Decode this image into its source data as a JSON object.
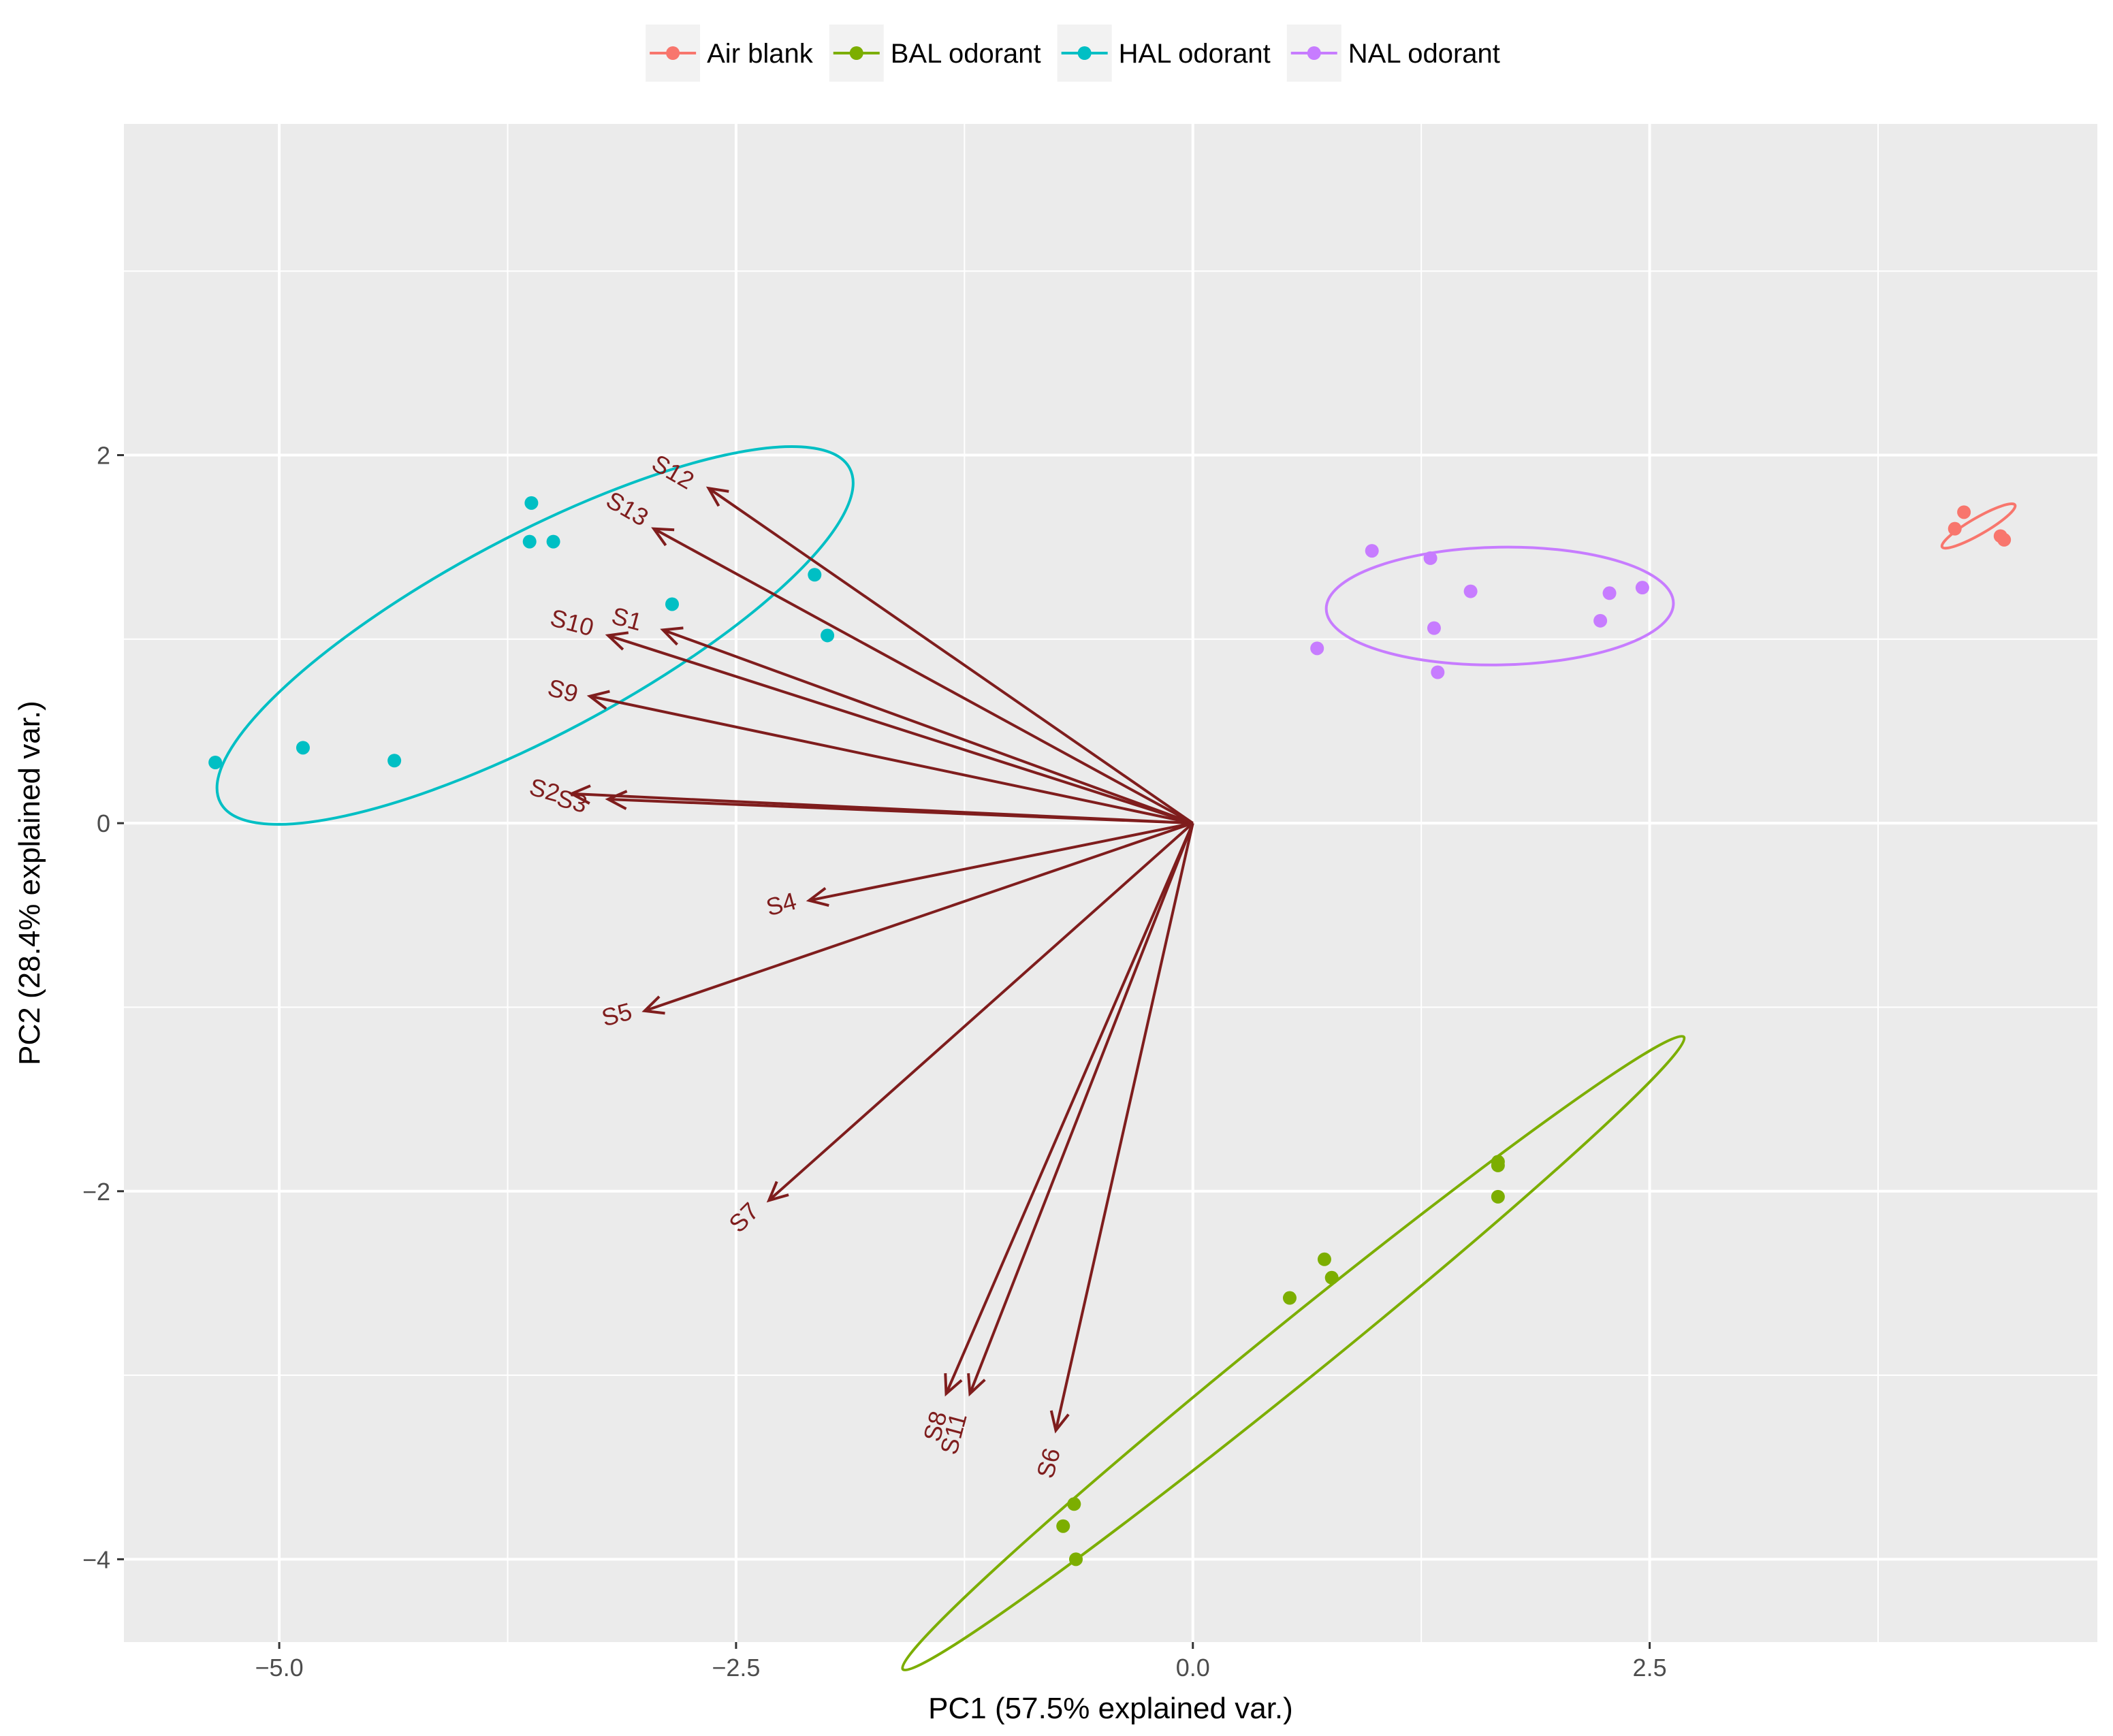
{
  "chart_data": {
    "type": "scatter",
    "title": "",
    "xlabel": "PC1 (57.5% explained var.)",
    "ylabel": "PC2 (28.4% explained var.)",
    "xlim": [
      -5.85,
      4.95
    ],
    "ylim": [
      -4.45,
      3.8
    ],
    "xticks": [
      -5.0,
      -2.5,
      0.0,
      2.5
    ],
    "xtick_labels": [
      "−5.0",
      "−2.5",
      "0.0",
      "2.5"
    ],
    "yticks": [
      -4,
      -2,
      0,
      2
    ],
    "ytick_labels": [
      "−4",
      "−2",
      "0",
      "2"
    ],
    "x_minor_gridlines": [
      -3.75,
      -1.25,
      1.25,
      3.75
    ],
    "y_minor_gridlines": [
      -3,
      -1,
      1,
      3
    ],
    "grid": true,
    "legend_position": "top",
    "legend": [
      "Air blank",
      "BAL odorant",
      "HAL odorant",
      "NAL odorant"
    ],
    "series": [
      {
        "name": "Air blank",
        "color": "#F8766D",
        "points": [
          [
            4.22,
            1.69
          ],
          [
            4.17,
            1.6
          ],
          [
            4.42,
            1.56
          ],
          [
            4.44,
            1.54
          ]
        ],
        "ellipse": {
          "center": [
            4.3,
            1.615
          ],
          "rx": 0.23,
          "ry": 0.045,
          "angle_deg": -30
        }
      },
      {
        "name": "BAL odorant",
        "color": "#7CAE00",
        "points": [
          [
            -0.65,
            -3.7
          ],
          [
            -0.71,
            -3.82
          ],
          [
            -0.64,
            -4.0
          ],
          [
            0.53,
            -2.58
          ],
          [
            0.72,
            -2.37
          ],
          [
            0.76,
            -2.47
          ],
          [
            1.67,
            -1.84
          ],
          [
            1.67,
            -1.86
          ],
          [
            1.67,
            -2.03
          ]
        ],
        "ellipse": {
          "center": [
            0.55,
            -2.88
          ],
          "rx": 2.75,
          "ry": 0.16,
          "angle_deg": -39
        }
      },
      {
        "name": "HAL odorant",
        "color": "#00BFC4",
        "points": [
          [
            -5.35,
            0.33
          ],
          [
            -4.87,
            0.41
          ],
          [
            -4.37,
            0.34
          ],
          [
            -3.62,
            1.74
          ],
          [
            -3.63,
            1.53
          ],
          [
            -3.5,
            1.53
          ],
          [
            -2.85,
            1.19
          ],
          [
            -2.07,
            1.35
          ],
          [
            -2.0,
            1.02
          ]
        ],
        "ellipse": {
          "center": [
            -3.6,
            1.02
          ],
          "rx": 1.95,
          "ry": 0.54,
          "angle_deg": -28
        }
      },
      {
        "name": "NAL odorant",
        "color": "#C77CFF",
        "points": [
          [
            0.68,
            0.95
          ],
          [
            0.98,
            1.48
          ],
          [
            1.3,
            1.44
          ],
          [
            1.32,
            1.06
          ],
          [
            1.34,
            0.82
          ],
          [
            1.52,
            1.26
          ],
          [
            2.23,
            1.1
          ],
          [
            2.28,
            1.25
          ],
          [
            2.46,
            1.28
          ]
        ],
        "ellipse": {
          "center": [
            1.68,
            1.18
          ],
          "rx": 0.95,
          "ry": 0.32,
          "angle_deg": -1
        }
      }
    ],
    "loadings": {
      "color": "#7F1D1D",
      "origin": [
        0,
        0
      ],
      "vectors": [
        {
          "label": "S1",
          "end": [
            -2.9,
            1.05
          ],
          "label_pos": [
            -3.1,
            1.1
          ],
          "label_angle": 15
        },
        {
          "label": "S2",
          "end": [
            -3.4,
            0.16
          ],
          "label_pos": [
            -3.55,
            0.17
          ],
          "label_angle": 15
        },
        {
          "label": "S3",
          "end": [
            -3.2,
            0.13
          ],
          "label_pos": [
            -3.4,
            0.11
          ],
          "label_angle": 15
        },
        {
          "label": "S4",
          "end": [
            -2.1,
            -0.42
          ],
          "label_pos": [
            -2.25,
            -0.45
          ],
          "label_angle": -15
        },
        {
          "label": "S5",
          "end": [
            -3.0,
            -1.02
          ],
          "label_pos": [
            -3.15,
            -1.05
          ],
          "label_angle": -15
        },
        {
          "label": "S6",
          "end": [
            -0.75,
            -3.3
          ],
          "label_pos": [
            -0.78,
            -3.48
          ],
          "label_angle": -75
        },
        {
          "label": "S7",
          "end": [
            -2.32,
            -2.05
          ],
          "label_pos": [
            -2.45,
            -2.15
          ],
          "label_angle": -45
        },
        {
          "label": "S8",
          "end": [
            -1.35,
            -3.1
          ],
          "label_pos": [
            -1.4,
            -3.28
          ],
          "label_angle": -75
        },
        {
          "label": "S9",
          "end": [
            -3.3,
            0.69
          ],
          "label_pos": [
            -3.45,
            0.71
          ],
          "label_angle": 15
        },
        {
          "label": "S10",
          "end": [
            -3.2,
            1.02
          ],
          "label_pos": [
            -3.4,
            1.08
          ],
          "label_angle": 15
        },
        {
          "label": "S11",
          "end": [
            -1.22,
            -3.1
          ],
          "label_pos": [
            -1.3,
            -3.32
          ],
          "label_angle": -75
        },
        {
          "label": "S12",
          "end": [
            -2.65,
            1.82
          ],
          "label_pos": [
            -2.85,
            1.9
          ],
          "label_angle": 30
        },
        {
          "label": "S13",
          "end": [
            -2.95,
            1.6
          ],
          "label_pos": [
            -3.1,
            1.7
          ],
          "label_angle": 30
        }
      ]
    }
  }
}
